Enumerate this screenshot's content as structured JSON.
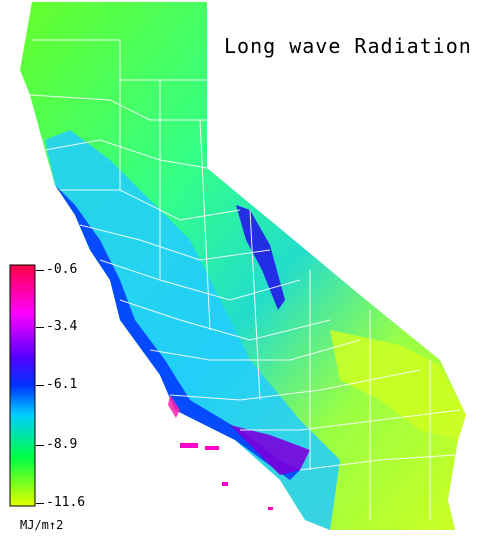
{
  "map": {
    "title": "Long wave Radiation",
    "region": "California",
    "colors": {
      "high": "#ff0044",
      "magenta": "#ff00ff",
      "purple": "#6600dd",
      "blue": "#0022ff",
      "cyan": "#00ccff",
      "green": "#00ff44",
      "low": "#e6ff00"
    }
  },
  "legend": {
    "units": "MJ/m↑2",
    "ticks": [
      "-0.6",
      "-3.4",
      "-6.1",
      "-8.9",
      "-11.6"
    ]
  }
}
